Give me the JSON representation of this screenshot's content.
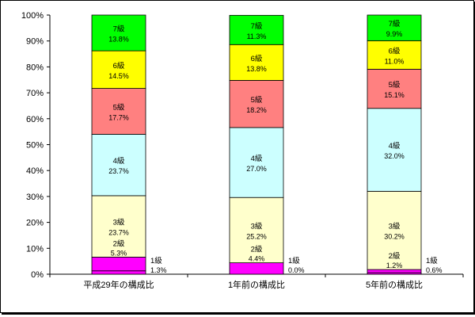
{
  "chart_data": {
    "type": "bar",
    "stacked": true,
    "categories": [
      "平成29年の構成比",
      "1年前の構成比",
      "5年前の構成比"
    ],
    "ylim": [
      0,
      100
    ],
    "yticks": [
      "0%",
      "10%",
      "20%",
      "30%",
      "40%",
      "50%",
      "60%",
      "70%",
      "80%",
      "90%",
      "100%"
    ],
    "series": [
      {
        "name": "1級",
        "color": "#ff00ff",
        "values": [
          1.3,
          0.0,
          0.6
        ],
        "labels": [
          "1.3%",
          "0.0%",
          "0.6%"
        ]
      },
      {
        "name": "2級",
        "color": "#ff00ff",
        "values": [
          5.3,
          4.4,
          1.2
        ],
        "labels": [
          "5.3%",
          "4.4%",
          "1.2%"
        ]
      },
      {
        "name": "3級",
        "color": "#ffffcc",
        "values": [
          23.7,
          25.2,
          30.2
        ],
        "labels": [
          "23.7%",
          "25.2%",
          "30.2%"
        ]
      },
      {
        "name": "4級",
        "color": "#ccffff",
        "values": [
          23.7,
          27.0,
          32.0
        ],
        "labels": [
          "23.7%",
          "27.0%",
          "32.0%"
        ]
      },
      {
        "name": "5級",
        "color": "#ff8080",
        "values": [
          17.7,
          18.2,
          15.1
        ],
        "labels": [
          "17.7%",
          "18.2%",
          "15.1%"
        ]
      },
      {
        "name": "6級",
        "color": "#ffff00",
        "values": [
          14.5,
          13.8,
          11.0
        ],
        "labels": [
          "14.5%",
          "13.8%",
          "11.0%"
        ]
      },
      {
        "name": "7級",
        "color": "#00ff00",
        "values": [
          13.8,
          11.3,
          9.9
        ],
        "labels": [
          "13.8%",
          "11.3%",
          "9.9%"
        ]
      }
    ],
    "legend": "none",
    "grid": false
  }
}
